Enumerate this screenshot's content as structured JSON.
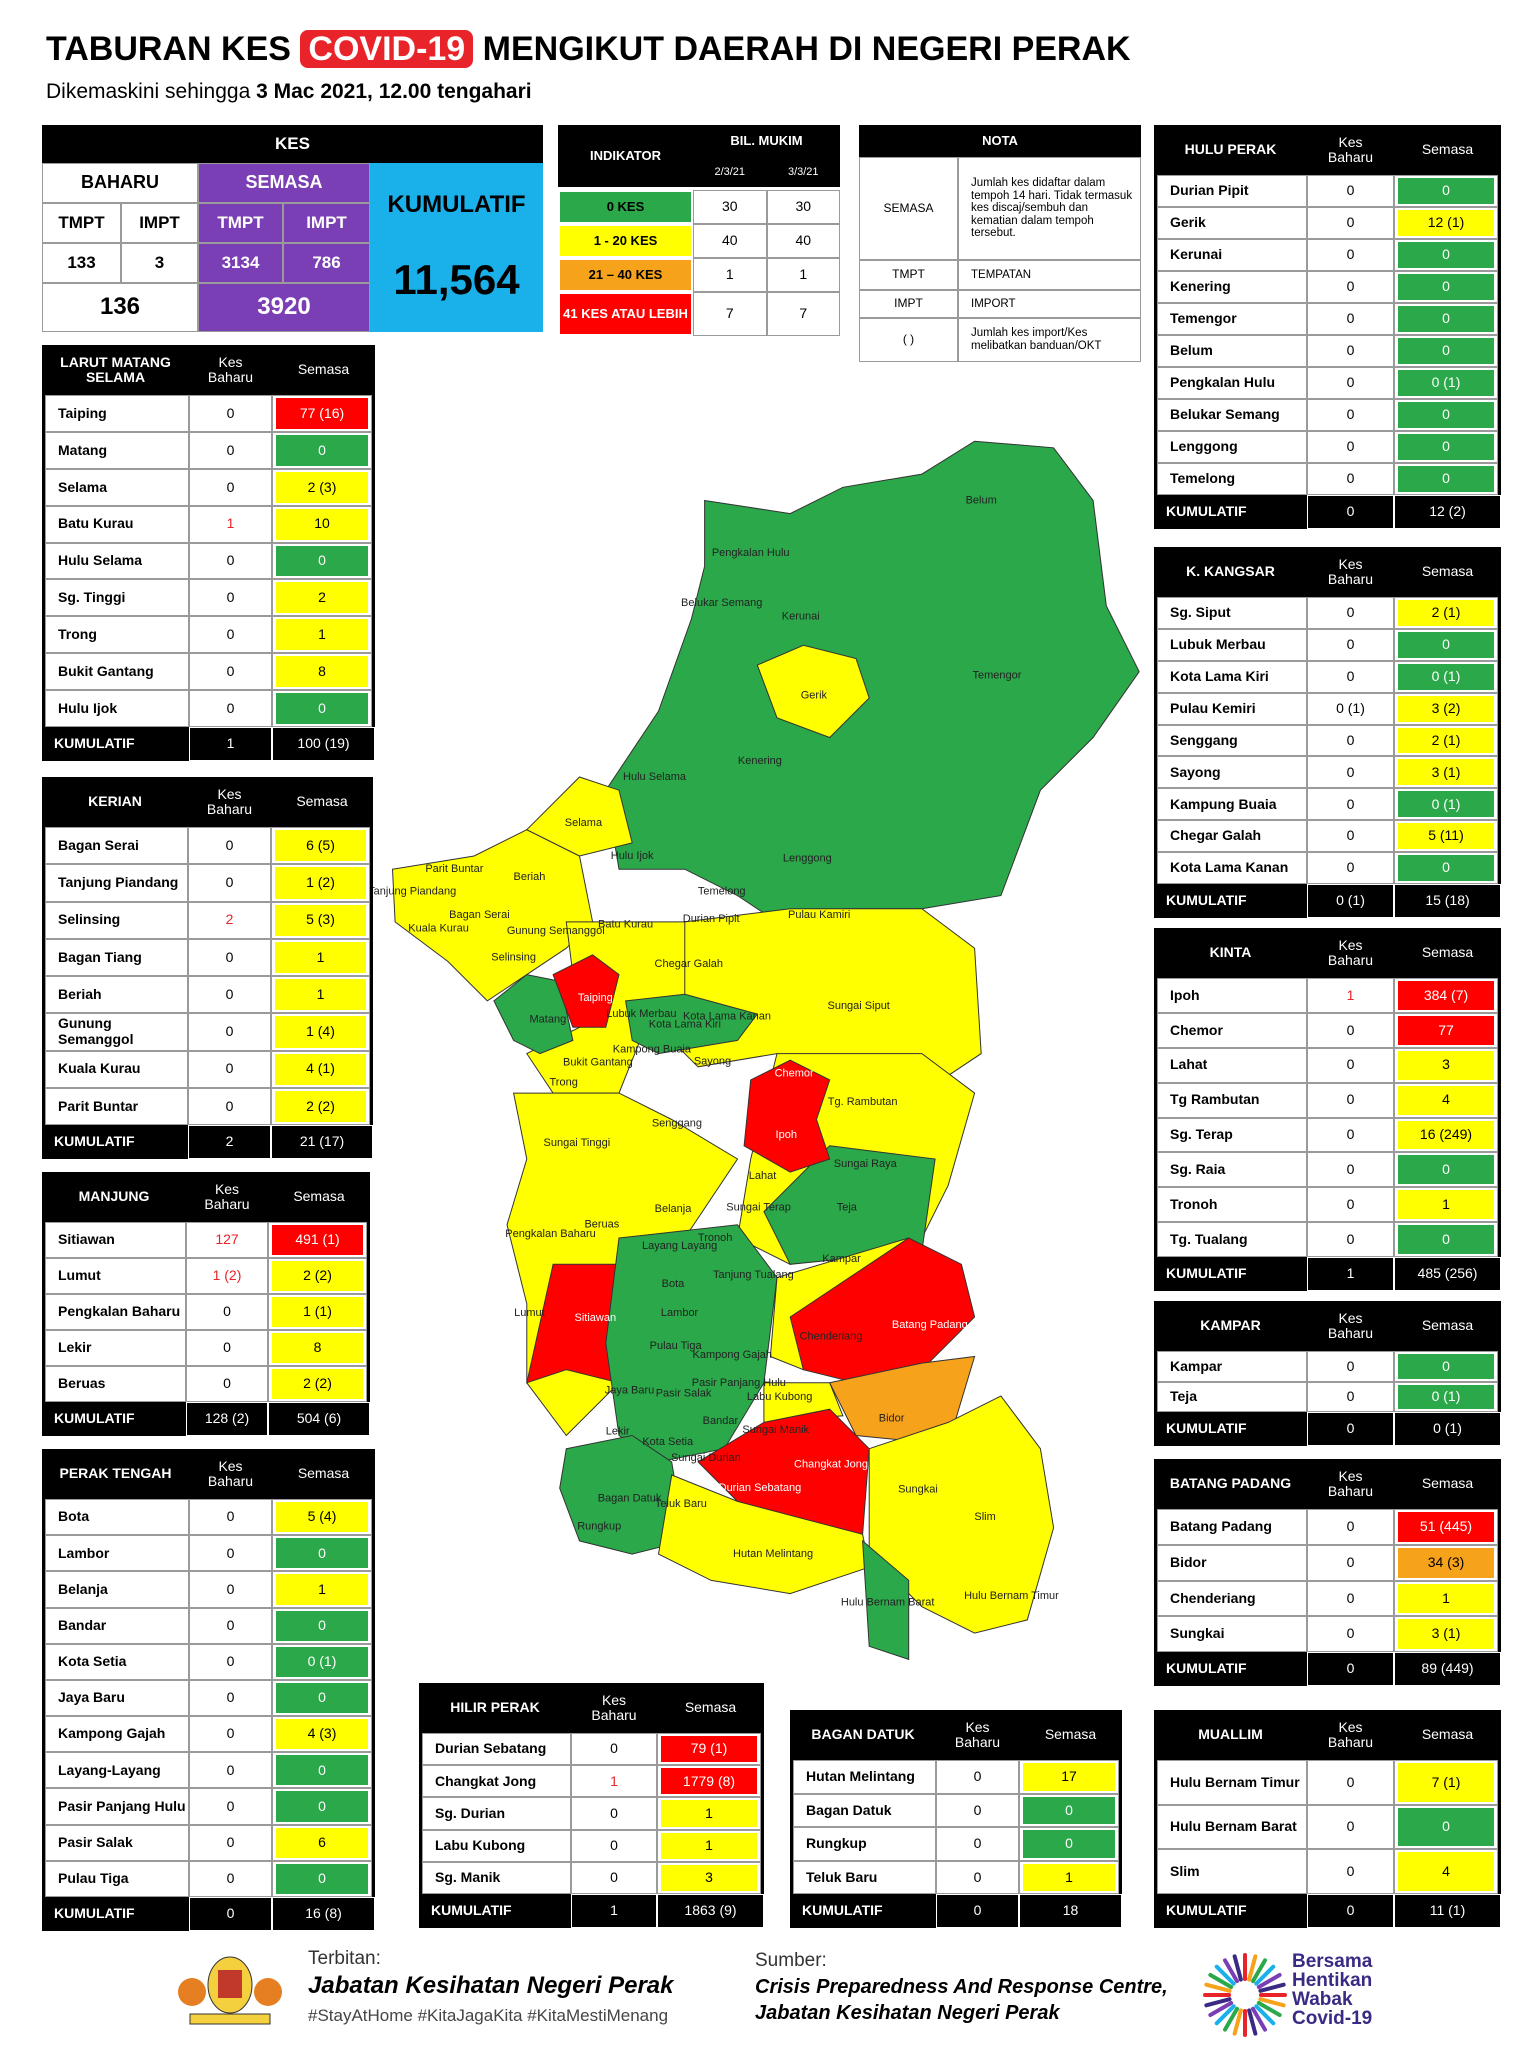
{
  "header": {
    "title_1": "TABURAN KES",
    "title_highlight": "COVID-19",
    "title_2": "MENGIKUT DAERAH DI NEGERI PERAK",
    "subtitle_1": "Dikemaskini sehingga",
    "subtitle_2": "3 Mac 2021, 12.00 tengahari"
  },
  "kes": {
    "title": "KES",
    "baharu": {
      "label": "BAHARU",
      "columns": [
        "TMPT",
        "IMPT"
      ],
      "values": [
        133,
        3
      ],
      "total": 136
    },
    "semasa": {
      "label": "SEMASA",
      "columns": [
        "TMPT",
        "IMPT"
      ],
      "values": [
        3134,
        786
      ],
      "total": 3920
    },
    "kumulatif": {
      "label": "KUMULATIF",
      "value": "11,564"
    }
  },
  "indikator": {
    "header": "INDIKATOR",
    "bil_mukim": "BIL. MUKIM",
    "dates": [
      "2/3/21",
      "3/3/21"
    ],
    "rows": [
      {
        "label": "0 KES",
        "color": "#2aa84a",
        "values": [
          30,
          30
        ]
      },
      {
        "label": "1 - 20 KES",
        "color": "#ffff00",
        "values": [
          40,
          40
        ]
      },
      {
        "label": "21 – 40 KES",
        "color": "#f7a21b",
        "values": [
          1,
          1
        ]
      },
      {
        "label": "41 KES ATAU LEBIH",
        "color": "#ff0000",
        "values": [
          7,
          7
        ]
      }
    ]
  },
  "nota": {
    "title": "NOTA",
    "rows": [
      [
        "SEMASA",
        "Jumlah kes didaftar dalam tempoh 14 hari. Tidak termasuk kes discaj/sembuh dan kematian dalam tempoh tersebut."
      ],
      [
        "TMPT",
        "TEMPATAN"
      ],
      [
        "IMPT",
        "IMPORT"
      ],
      [
        "( )",
        "Jumlah kes import/Kes melibatkan banduan/OKT"
      ]
    ]
  },
  "districts": [
    {
      "title": "HULU PERAK",
      "columns": [
        "Kes Baharu",
        "Semasa"
      ],
      "rows": [
        {
          "name": "Durian Pipit",
          "baharu": 0,
          "semasa": 0,
          "color": "#2aa84a"
        },
        {
          "name": "Gerik",
          "baharu": 0,
          "semasa": "12 (1)",
          "color": "#ffff00"
        },
        {
          "name": "Kerunai",
          "baharu": 0,
          "semasa": 0,
          "color": "#2aa84a"
        },
        {
          "name": "Kenering",
          "baharu": 0,
          "semasa": 0,
          "color": "#2aa84a"
        },
        {
          "name": "Temengor",
          "baharu": 0,
          "semasa": 0,
          "color": "#2aa84a"
        },
        {
          "name": "Belum",
          "baharu": 0,
          "semasa": 0,
          "color": "#2aa84a"
        },
        {
          "name": "Pengkalan Hulu",
          "baharu": 0,
          "semasa": "0 (1)",
          "color": "#2aa84a"
        },
        {
          "name": "Belukar Semang",
          "baharu": 0,
          "semasa": 0,
          "color": "#2aa84a"
        },
        {
          "name": "Lenggong",
          "baharu": 0,
          "semasa": 0,
          "color": "#2aa84a"
        },
        {
          "name": "Temelong",
          "baharu": 0,
          "semasa": 0,
          "color": "#2aa84a"
        }
      ],
      "total": {
        "label": "KUMULATIF",
        "baharu": 0,
        "semasa": "12 (2)"
      }
    },
    {
      "title": "K. KANGSAR",
      "columns": [
        "Kes Baharu",
        "Semasa"
      ],
      "rows": [
        {
          "name": "Sg. Siput",
          "baharu": 0,
          "semasa": "2 (1)",
          "color": "#ffff00"
        },
        {
          "name": "Lubuk Merbau",
          "baharu": 0,
          "semasa": 0,
          "color": "#2aa84a"
        },
        {
          "name": "Kota Lama Kiri",
          "baharu": 0,
          "semasa": "0 (1)",
          "color": "#2aa84a"
        },
        {
          "name": "Pulau Kemiri",
          "baharu": "0 (1)",
          "semasa": "3 (2)",
          "color": "#ffff00"
        },
        {
          "name": "Senggang",
          "baharu": 0,
          "semasa": "2 (1)",
          "color": "#ffff00"
        },
        {
          "name": "Sayong",
          "baharu": 0,
          "semasa": "3 (1)",
          "color": "#ffff00"
        },
        {
          "name": "Kampung Buaia",
          "baharu": 0,
          "semasa": "0 (1)",
          "color": "#2aa84a"
        },
        {
          "name": "Chegar Galah",
          "baharu": 0,
          "semasa": "5 (11)",
          "color": "#ffff00"
        },
        {
          "name": "Kota Lama Kanan",
          "baharu": 0,
          "semasa": 0,
          "color": "#2aa84a"
        }
      ],
      "total": {
        "label": "KUMULATIF",
        "baharu": "0 (1)",
        "semasa": "15 (18)"
      }
    },
    {
      "title": "KINTA",
      "columns": [
        "Kes Baharu",
        "Semasa"
      ],
      "rows": [
        {
          "name": "Ipoh",
          "baharu": 1,
          "semasa": "384 (7)",
          "color": "#ff0000"
        },
        {
          "name": "Chemor",
          "baharu": 0,
          "semasa": 77,
          "color": "#ff0000"
        },
        {
          "name": "Lahat",
          "baharu": 0,
          "semasa": 3,
          "color": "#ffff00"
        },
        {
          "name": "Tg Rambutan",
          "baharu": 0,
          "semasa": 4,
          "color": "#ffff00"
        },
        {
          "name": "Sg. Terap",
          "baharu": 0,
          "semasa": "16 (249)",
          "color": "#ffff00"
        },
        {
          "name": "Sg. Raia",
          "baharu": 0,
          "semasa": 0,
          "color": "#2aa84a"
        },
        {
          "name": "Tronoh",
          "baharu": 0,
          "semasa": 1,
          "color": "#ffff00"
        },
        {
          "name": "Tg. Tualang",
          "baharu": 0,
          "semasa": 0,
          "color": "#2aa84a"
        }
      ],
      "total": {
        "label": "KUMULATIF",
        "baharu": 1,
        "semasa": "485 (256)"
      }
    },
    {
      "title": "KAMPAR",
      "columns": [
        "Kes Baharu",
        "Semasa"
      ],
      "rows": [
        {
          "name": "Kampar",
          "baharu": 0,
          "semasa": 0,
          "color": "#2aa84a"
        },
        {
          "name": "Teja",
          "baharu": 0,
          "semasa": "0 (1)",
          "color": "#2aa84a"
        }
      ],
      "total": {
        "label": "KUMULATIF",
        "baharu": 0,
        "semasa": "0 (1)"
      }
    },
    {
      "title": "BATANG PADANG",
      "columns": [
        "Kes Baharu",
        "Semasa"
      ],
      "rows": [
        {
          "name": "Batang Padang",
          "baharu": 0,
          "semasa": "51 (445)",
          "color": "#ff0000"
        },
        {
          "name": "Bidor",
          "baharu": 0,
          "semasa": "34 (3)",
          "color": "#f7a21b"
        },
        {
          "name": "Chenderiang",
          "baharu": 0,
          "semasa": 1,
          "color": "#ffff00"
        },
        {
          "name": "Sungkai",
          "baharu": 0,
          "semasa": "3 (1)",
          "color": "#ffff00"
        }
      ],
      "total": {
        "label": "KUMULATIF",
        "baharu": 0,
        "semasa": "89 (449)"
      }
    },
    {
      "title": "MUALLIM",
      "columns": [
        "Kes Baharu",
        "Semasa"
      ],
      "rows": [
        {
          "name": "Hulu Bernam Timur",
          "baharu": 0,
          "semasa": "7 (1)",
          "color": "#ffff00"
        },
        {
          "name": "Hulu Bernam Barat",
          "baharu": 0,
          "semasa": 0,
          "color": "#2aa84a"
        },
        {
          "name": "Slim",
          "baharu": 0,
          "semasa": 4,
          "color": "#ffff00"
        }
      ],
      "total": {
        "label": "KUMULATIF",
        "baharu": 0,
        "semasa": "11 (1)"
      }
    },
    {
      "title": "LARUT MATANG SELAMA",
      "columns": [
        "Kes Baharu",
        "Semasa"
      ],
      "rows": [
        {
          "name": "Taiping",
          "baharu": 0,
          "semasa": "77 (16)",
          "color": "#ff0000"
        },
        {
          "name": "Matang",
          "baharu": 0,
          "semasa": 0,
          "color": "#2aa84a"
        },
        {
          "name": "Selama",
          "baharu": 0,
          "semasa": "2 (3)",
          "color": "#ffff00"
        },
        {
          "name": "Batu Kurau",
          "baharu": 1,
          "semasa": 10,
          "color": "#ffff00"
        },
        {
          "name": "Hulu Selama",
          "baharu": 0,
          "semasa": 0,
          "color": "#2aa84a"
        },
        {
          "name": "Sg. Tinggi",
          "baharu": 0,
          "semasa": 2,
          "color": "#ffff00"
        },
        {
          "name": "Trong",
          "baharu": 0,
          "semasa": 1,
          "color": "#ffff00"
        },
        {
          "name": "Bukit Gantang",
          "baharu": 0,
          "semasa": 8,
          "color": "#ffff00"
        },
        {
          "name": "Hulu Ijok",
          "baharu": 0,
          "semasa": 0,
          "color": "#2aa84a"
        }
      ],
      "total": {
        "label": "KUMULATIF",
        "baharu": 1,
        "semasa": "100 (19)"
      }
    },
    {
      "title": "KERIAN",
      "columns": [
        "Kes Baharu",
        "Semasa"
      ],
      "rows": [
        {
          "name": "Bagan Serai",
          "baharu": 0,
          "semasa": "6 (5)",
          "color": "#ffff00"
        },
        {
          "name": "Tanjung Piandang",
          "baharu": 0,
          "semasa": "1 (2)",
          "color": "#ffff00"
        },
        {
          "name": "Selinsing",
          "baharu": 2,
          "semasa": "5 (3)",
          "color": "#ffff00"
        },
        {
          "name": "Bagan Tiang",
          "baharu": 0,
          "semasa": 1,
          "color": "#ffff00"
        },
        {
          "name": "Beriah",
          "baharu": 0,
          "semasa": 1,
          "color": "#ffff00"
        },
        {
          "name": "Gunung Semanggol",
          "baharu": 0,
          "semasa": "1 (4)",
          "color": "#ffff00"
        },
        {
          "name": "Kuala Kurau",
          "baharu": 0,
          "semasa": "4 (1)",
          "color": "#ffff00"
        },
        {
          "name": "Parit Buntar",
          "baharu": 0,
          "semasa": "2 (2)",
          "color": "#ffff00"
        }
      ],
      "total": {
        "label": "KUMULATIF",
        "baharu": 2,
        "semasa": "21 (17)"
      }
    },
    {
      "title": "MANJUNG",
      "columns": [
        "Kes Baharu",
        "Semasa"
      ],
      "rows": [
        {
          "name": "Sitiawan",
          "baharu": 127,
          "semasa": "491 (1)",
          "color": "#ff0000"
        },
        {
          "name": "Lumut",
          "baharu": "1 (2)",
          "semasa": "2 (2)",
          "color": "#ffff00"
        },
        {
          "name": "Pengkalan Baharu",
          "baharu": 0,
          "semasa": "1 (1)",
          "color": "#ffff00"
        },
        {
          "name": "Lekir",
          "baharu": 0,
          "semasa": 8,
          "color": "#ffff00"
        },
        {
          "name": "Beruas",
          "baharu": 0,
          "semasa": "2 (2)",
          "color": "#ffff00"
        }
      ],
      "total": {
        "label": "KUMULATIF",
        "baharu": "128 (2)",
        "semasa": "504 (6)"
      }
    },
    {
      "title": "PERAK TENGAH",
      "columns": [
        "Kes Baharu",
        "Semasa"
      ],
      "rows": [
        {
          "name": "Bota",
          "baharu": 0,
          "semasa": "5 (4)",
          "color": "#ffff00"
        },
        {
          "name": "Lambor",
          "baharu": 0,
          "semasa": 0,
          "color": "#2aa84a"
        },
        {
          "name": "Belanja",
          "baharu": 0,
          "semasa": 1,
          "color": "#ffff00"
        },
        {
          "name": "Bandar",
          "baharu": 0,
          "semasa": 0,
          "color": "#2aa84a"
        },
        {
          "name": "Kota Setia",
          "baharu": 0,
          "semasa": "0 (1)",
          "color": "#2aa84a"
        },
        {
          "name": "Jaya Baru",
          "baharu": 0,
          "semasa": 0,
          "color": "#2aa84a"
        },
        {
          "name": "Kampong Gajah",
          "baharu": 0,
          "semasa": "4 (3)",
          "color": "#ffff00"
        },
        {
          "name": "Layang-Layang",
          "baharu": 0,
          "semasa": 0,
          "color": "#2aa84a"
        },
        {
          "name": "Pasir Panjang Hulu",
          "baharu": 0,
          "semasa": 0,
          "color": "#2aa84a"
        },
        {
          "name": "Pasir Salak",
          "baharu": 0,
          "semasa": 6,
          "color": "#ffff00"
        },
        {
          "name": "Pulau Tiga",
          "baharu": 0,
          "semasa": 0,
          "color": "#2aa84a"
        }
      ],
      "total": {
        "label": "KUMULATIF",
        "baharu": 0,
        "semasa": "16 (8)"
      }
    },
    {
      "title": "HILIR PERAK",
      "columns": [
        "Kes Baharu",
        "Semasa"
      ],
      "rows": [
        {
          "name": "Durian Sebatang",
          "baharu": 0,
          "semasa": "79 (1)",
          "color": "#ff0000"
        },
        {
          "name": "Changkat Jong",
          "baharu": 1,
          "semasa": "1779 (8)",
          "color": "#ff0000"
        },
        {
          "name": "Sg. Durian",
          "baharu": 0,
          "semasa": 1,
          "color": "#ffff00"
        },
        {
          "name": "Labu Kubong",
          "baharu": 0,
          "semasa": 1,
          "color": "#ffff00"
        },
        {
          "name": "Sg. Manik",
          "baharu": 0,
          "semasa": 3,
          "color": "#ffff00"
        }
      ],
      "total": {
        "label": "KUMULATIF",
        "baharu": 1,
        "semasa": "1863 (9)"
      }
    },
    {
      "title": "BAGAN DATUK",
      "columns": [
        "Kes Baharu",
        "Semasa"
      ],
      "rows": [
        {
          "name": "Hutan Melintang",
          "baharu": 0,
          "semasa": 17,
          "color": "#ffff00"
        },
        {
          "name": "Bagan Datuk",
          "baharu": 0,
          "semasa": 0,
          "color": "#2aa84a"
        },
        {
          "name": "Rungkup",
          "baharu": 0,
          "semasa": 0,
          "color": "#2aa84a"
        },
        {
          "name": "Teluk Baru",
          "baharu": 0,
          "semasa": 1,
          "color": "#ffff00"
        }
      ],
      "total": {
        "label": "KUMULATIF",
        "baharu": 0,
        "semasa": 18
      }
    }
  ],
  "map": {
    "labels": [
      "Belum",
      "Pengkalan Hulu",
      "Belukar Semang",
      "Kerunai",
      "Temengor",
      "Gerik",
      "Kenering",
      "Hulu Selama",
      "Selama",
      "Hulu Ijok",
      "Lenggong",
      "Parit Buntar",
      "Tanjung Piandang",
      "Beriah",
      "Temelong",
      "Bagan Serai",
      "Durian Pipit",
      "Pulau Kamiri",
      "Batu Kurau",
      "Kuala Kurau",
      "Gunung Semanggol",
      "Selinsing",
      "Chegar Galah",
      "Taiping",
      "Sungai Siput",
      "Lubuk Merbau",
      "Kota Lama Kiri",
      "Kota Lama Kanan",
      "Matang",
      "Kampong Buaia",
      "Sayong",
      "Bukit Gantang",
      "Chemor",
      "Trong",
      "Tg. Rambutan",
      "Senggang",
      "Sungai Tinggi",
      "Ipoh",
      "Sungai Raya",
      "Lahat",
      "Teja",
      "Sungai Terap",
      "Belanja",
      "Beruas",
      "Pengkalan Baharu",
      "Layang Layang",
      "Tronoh",
      "Kampar",
      "Bota",
      "Tanjung Tualang",
      "Lumut",
      "Lambor",
      "Sitiawan",
      "Batang Padang",
      "Chenderiang",
      "Pulau Tiga",
      "Kampong Gajah",
      "Pasir Panjang Hulu",
      "Jaya Baru",
      "Pasir Salak",
      "Labu Kubong",
      "Bidor",
      "Sungai Manik",
      "Lekir",
      "Bandar",
      "Kota Setia",
      "Changkat Jong",
      "Sungai Durian",
      "Durian Sebatang",
      "Bagan Datuk",
      "Teluk Baru",
      "Sungkai",
      "Rungkup",
      "Slim",
      "Hutan Melintang",
      "Hulu Bernam Barat",
      "Hulu Bernam Timur"
    ]
  },
  "footer": {
    "terbitan_label": "Terbitan:",
    "terbitan": "Jabatan Kesihatan Negeri Perak",
    "hashtags": "#StayAtHome #KitaJagaKita #KitaMestiMenang",
    "sumber_label": "Sumber:",
    "sumber": [
      "Crisis Preparedness And Response Centre,",
      "Jabatan Kesihatan Negeri Perak"
    ],
    "logo_text": [
      "Bersama",
      "Hentikan",
      "Wabak",
      "Covid-19"
    ]
  }
}
